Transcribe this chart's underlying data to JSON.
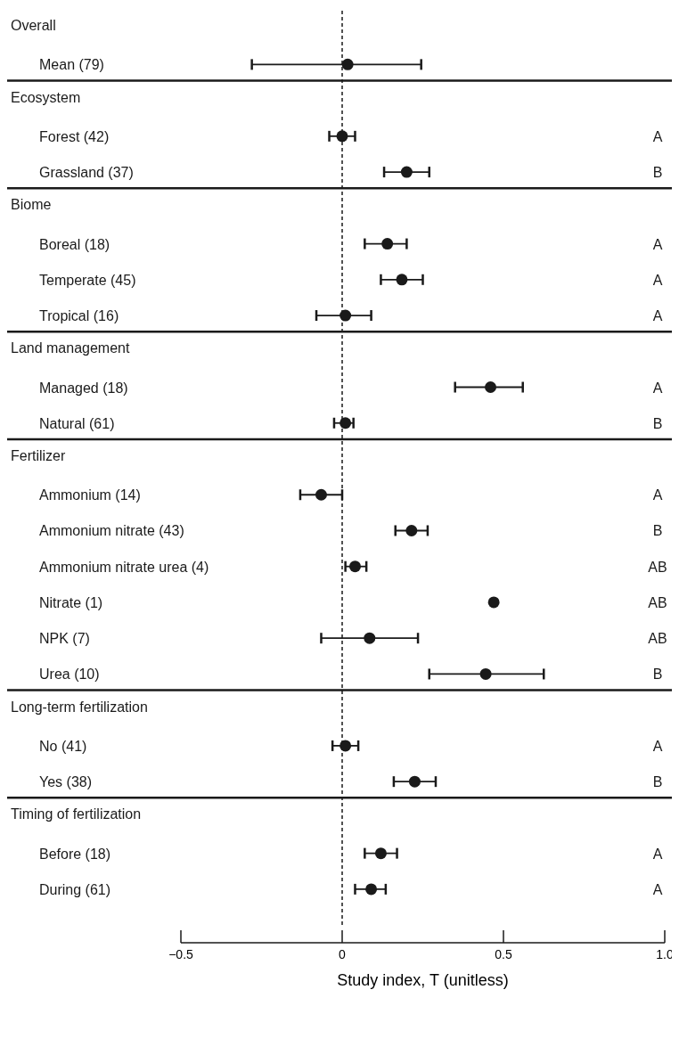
{
  "chart_data": {
    "type": "scatter",
    "orientation": "horizontal",
    "xlabel": "Study index, T (unitless)",
    "categories": [
      null,
      "Mean (79)",
      null,
      "Forest (42)",
      "Grassland (37)",
      null,
      "Boreal (18)",
      "Temperate (45)",
      "Tropical (16)",
      null,
      "Managed (18)",
      "Natural (61)",
      null,
      "Ammonium (14)",
      "Ammonium nitrate (43)",
      "Ammonium nitrate urea (4)",
      "Nitrate (1)",
      "NPK (7)",
      "Urea (10)",
      null,
      "No (41)",
      "Yes (38)",
      null,
      "Before (18)",
      "During (61)"
    ],
    "y2_categories": [
      null,
      null,
      null,
      "A",
      "B",
      null,
      "A",
      "A",
      "A",
      null,
      "A",
      "B",
      null,
      "A",
      "B",
      "AB",
      "AB",
      "AB",
      "B",
      null,
      "A",
      "B",
      null,
      "A",
      "A"
    ],
    "series": [
      {
        "color": "#1a1a1a",
        "values": [
          null,
          0.017,
          null,
          0.0,
          0.2,
          null,
          0.14,
          0.185,
          0.01,
          null,
          0.46,
          0.01,
          null,
          -0.065,
          0.215,
          0.04,
          0.47,
          0.085,
          0.445,
          null,
          0.01,
          0.225,
          null,
          0.12,
          0.09
        ],
        "errors": [
          null,
          [
            -0.28,
            0.245
          ],
          null,
          [
            -0.04,
            0.04
          ],
          [
            0.13,
            0.27
          ],
          null,
          [
            0.07,
            0.2
          ],
          [
            0.12,
            0.25
          ],
          [
            -0.08,
            0.09
          ],
          null,
          [
            0.35,
            0.56
          ],
          [
            -0.025,
            0.035
          ],
          null,
          [
            -0.13,
            0.0
          ],
          [
            0.165,
            0.265
          ],
          [
            0.01,
            0.075
          ],
          null,
          [
            -0.065,
            0.235
          ],
          [
            0.27,
            0.625
          ],
          null,
          [
            -0.03,
            0.05
          ],
          [
            0.16,
            0.29
          ],
          null,
          [
            0.07,
            0.17
          ],
          [
            0.04,
            0.135
          ]
        ]
      }
    ],
    "xlim": [
      -0.5,
      1.0
    ],
    "xticks": [
      {
        "value": -0.5,
        "label": "−0.5"
      },
      0,
      0.5,
      {
        "value": 1.0,
        "label": "1.0"
      }
    ],
    "ref_lines": [
      {
        "axis": "x",
        "value": 0,
        "line_style": "dashed",
        "color": "#1a1a1a"
      }
    ],
    "marker": "circle",
    "grid": false,
    "annotations": [
      "Overall",
      "Ecosystem",
      "Biome",
      "Land management",
      "Fertilizer",
      "Long-term fertilization",
      "Timing of fertilization"
    ]
  }
}
